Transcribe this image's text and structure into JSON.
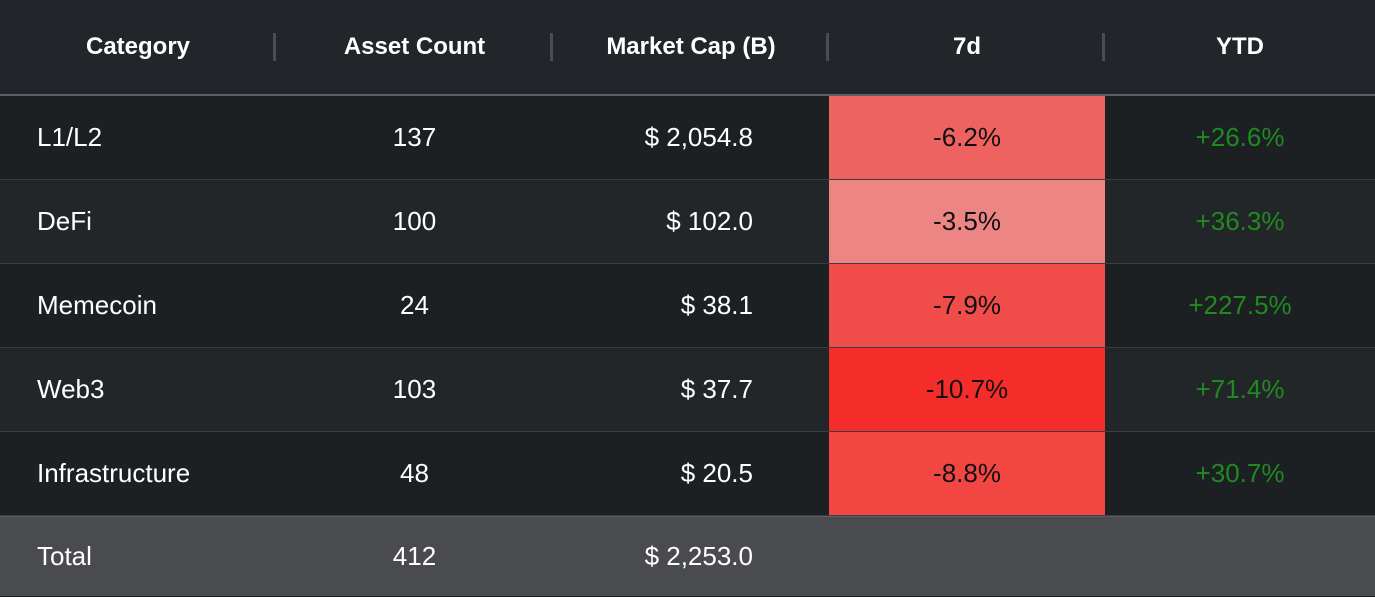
{
  "table": {
    "columns": [
      "Category",
      "Asset Count",
      "Market Cap (B)",
      "7d",
      "YTD"
    ],
    "rows": [
      {
        "category": "L1/L2",
        "asset_count": "137",
        "market_cap": "$ 2,054.8",
        "change_7d": "-6.2%",
        "change_7d_color": "#ee6360",
        "ytd": "+26.6%"
      },
      {
        "category": "DeFi",
        "asset_count": "100",
        "market_cap": "$ 102.0",
        "change_7d": "-3.5%",
        "change_7d_color": "#ec8583",
        "ytd": "+36.3%"
      },
      {
        "category": "Memecoin",
        "asset_count": "24",
        "market_cap": "$ 38.1",
        "change_7d": "-7.9%",
        "change_7d_color": "#f04d4a",
        "ytd": "+227.5%"
      },
      {
        "category": "Web3",
        "asset_count": "103",
        "market_cap": "$ 37.7",
        "change_7d": "-10.7%",
        "change_7d_color": "#f52d2a",
        "ytd": "+71.4%"
      },
      {
        "category": "Infrastructure",
        "asset_count": "48",
        "market_cap": "$ 20.5",
        "change_7d": "-8.8%",
        "change_7d_color": "#f24643",
        "ytd": "+30.7%"
      }
    ],
    "footer": {
      "label": "Total",
      "asset_count": "412",
      "market_cap": "$ 2,253.0"
    }
  },
  "colors": {
    "positive_text": "#1f8a1f",
    "header_bg": "#222529",
    "footer_bg": "#4a4b4f"
  }
}
